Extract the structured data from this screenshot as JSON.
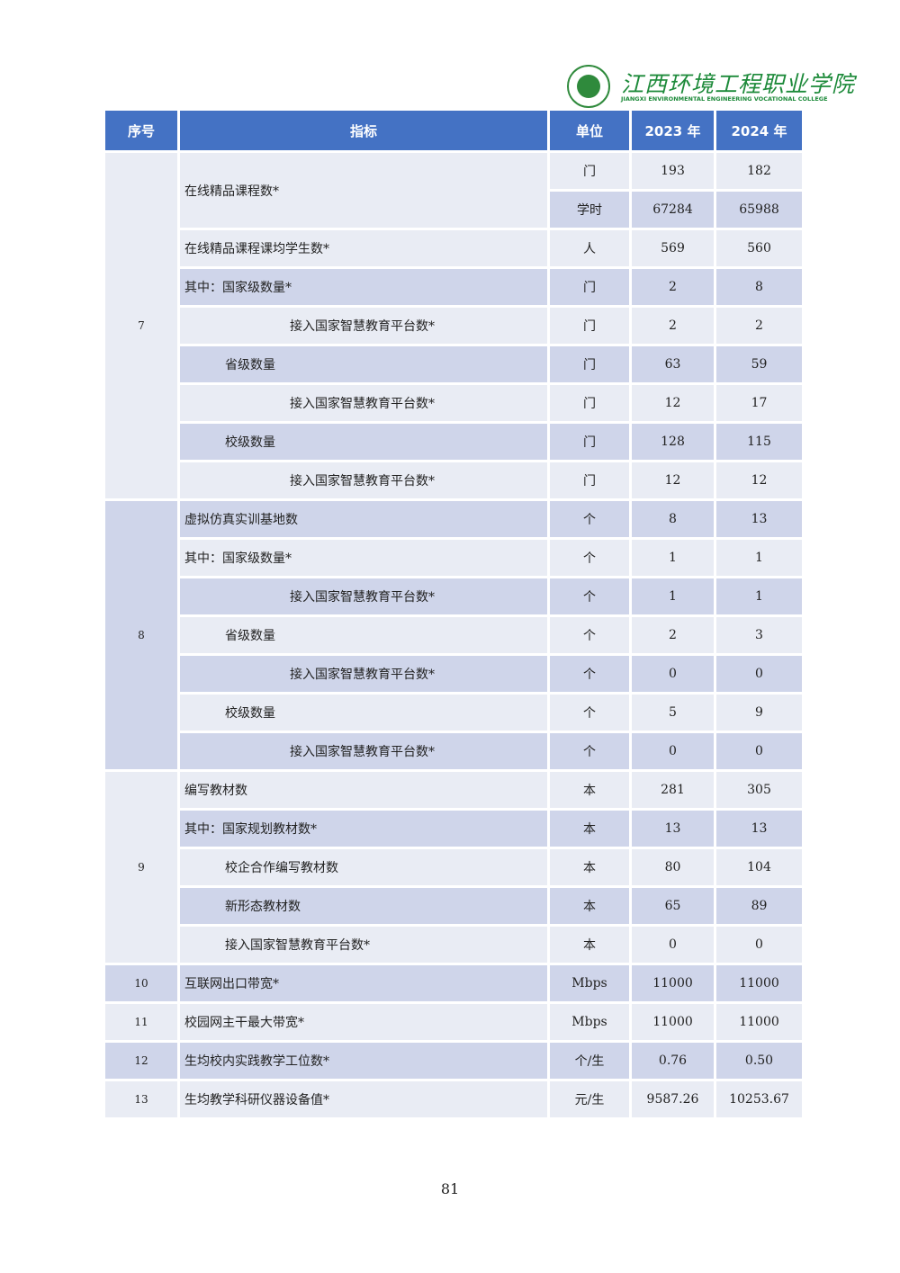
{
  "header": {
    "logo_cn": "江西环境工程职业学院",
    "logo_en": "JIANGXI ENVIRONMENTAL ENGINEERING VOCATIONAL COLLEGE"
  },
  "table": {
    "columns": [
      "序号",
      "指标",
      "单位",
      "2023 年",
      "2024 年"
    ],
    "rows": [
      {
        "seq": "7",
        "seq_span": 9,
        "indicator": "在线精品课程数*",
        "ind_span": 2,
        "level": 0,
        "unit": "门",
        "y2023": "193",
        "y2024": "182"
      },
      {
        "unit": "学时",
        "y2023": "67284",
        "y2024": "65988"
      },
      {
        "indicator": "在线精品课程课均学生数*",
        "level": 0,
        "unit": "人",
        "y2023": "569",
        "y2024": "560"
      },
      {
        "indicator": "其中：国家级数量*",
        "level": 0,
        "unit": "门",
        "y2023": "2",
        "y2024": "8"
      },
      {
        "indicator": "接入国家智慧教育平台数*",
        "level": 2,
        "unit": "门",
        "y2023": "2",
        "y2024": "2"
      },
      {
        "indicator": "省级数量",
        "level": 1,
        "unit": "门",
        "y2023": "63",
        "y2024": "59"
      },
      {
        "indicator": "接入国家智慧教育平台数*",
        "level": 2,
        "unit": "门",
        "y2023": "12",
        "y2024": "17"
      },
      {
        "indicator": "校级数量",
        "level": 1,
        "unit": "门",
        "y2023": "128",
        "y2024": "115"
      },
      {
        "indicator": "接入国家智慧教育平台数*",
        "level": 2,
        "unit": "门",
        "y2023": "12",
        "y2024": "12"
      },
      {
        "seq": "8",
        "seq_span": 7,
        "indicator": "虚拟仿真实训基地数",
        "level": 0,
        "unit": "个",
        "y2023": "8",
        "y2024": "13"
      },
      {
        "indicator": "其中：国家级数量*",
        "level": 0,
        "unit": "个",
        "y2023": "1",
        "y2024": "1"
      },
      {
        "indicator": "接入国家智慧教育平台数*",
        "level": 2,
        "unit": "个",
        "y2023": "1",
        "y2024": "1"
      },
      {
        "indicator": "省级数量",
        "level": 1,
        "unit": "个",
        "y2023": "2",
        "y2024": "3"
      },
      {
        "indicator": "接入国家智慧教育平台数*",
        "level": 2,
        "unit": "个",
        "y2023": "0",
        "y2024": "0"
      },
      {
        "indicator": "校级数量",
        "level": 1,
        "unit": "个",
        "y2023": "5",
        "y2024": "9"
      },
      {
        "indicator": "接入国家智慧教育平台数*",
        "level": 2,
        "unit": "个",
        "y2023": "0",
        "y2024": "0"
      },
      {
        "seq": "9",
        "seq_span": 5,
        "indicator": "编写教材数",
        "level": 0,
        "unit": "本",
        "y2023": "281",
        "y2024": "305"
      },
      {
        "indicator": "其中：国家规划教材数*",
        "level": 0,
        "unit": "本",
        "y2023": "13",
        "y2024": "13"
      },
      {
        "indicator": "校企合作编写教材数",
        "level": 1,
        "unit": "本",
        "y2023": "80",
        "y2024": "104"
      },
      {
        "indicator": "新形态教材数",
        "level": 1,
        "unit": "本",
        "y2023": "65",
        "y2024": "89"
      },
      {
        "indicator": "接入国家智慧教育平台数*",
        "level": 1,
        "unit": "本",
        "y2023": "0",
        "y2024": "0"
      },
      {
        "seq": "10",
        "seq_span": 1,
        "indicator": "互联网出口带宽*",
        "level": 0,
        "unit": "Mbps",
        "y2023": "11000",
        "y2024": "11000"
      },
      {
        "seq": "11",
        "seq_span": 1,
        "indicator": "校园网主干最大带宽*",
        "level": 0,
        "unit": "Mbps",
        "y2023": "11000",
        "y2024": "11000"
      },
      {
        "seq": "12",
        "seq_span": 1,
        "indicator": "生均校内实践教学工位数*",
        "level": 0,
        "unit": "个/生",
        "y2023": "0.76",
        "y2024": "0.50"
      },
      {
        "seq": "13",
        "seq_span": 1,
        "indicator": "生均教学科研仪器设备值*",
        "level": 0,
        "unit": "元/生",
        "y2023": "9587.26",
        "y2024": "10253.67"
      }
    ]
  },
  "page_number": "81"
}
